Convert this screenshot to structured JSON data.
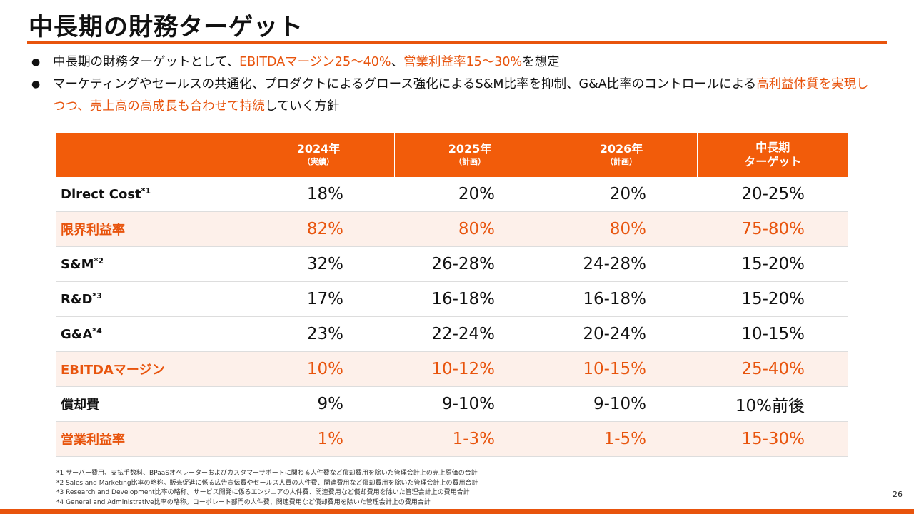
{
  "title": "中長期の財務ターゲット",
  "bullets": [
    {
      "parts": [
        {
          "text": "中長期の財務ターゲットとして、",
          "highlight": false
        },
        {
          "text": "EBITDAマージン25〜40%",
          "highlight": true
        },
        {
          "text": "、",
          "highlight": false
        },
        {
          "text": "営業利益率15〜30%",
          "highlight": true
        },
        {
          "text": "を想定",
          "highlight": false
        }
      ]
    },
    {
      "parts": [
        {
          "text": "マーケティングやセールスの共通化、プロダクトによるグロース強化によるS&M比率を抑制、G&A比率のコントロールによる",
          "highlight": false
        },
        {
          "text": "高利益体質を実現しつつ、売上高の高成長も合わせて持続",
          "highlight": true
        },
        {
          "text": "していく方針",
          "highlight": false
        }
      ]
    }
  ],
  "table": {
    "headers": [
      {
        "year": "",
        "sub": ""
      },
      {
        "year": "2024年",
        "sub": "（実績）"
      },
      {
        "year": "2025年",
        "sub": "（計画）"
      },
      {
        "year": "2026年",
        "sub": "（計画）"
      },
      {
        "year": "中長期",
        "sub": "ターゲット"
      }
    ],
    "rows": [
      {
        "label": "Direct Cost",
        "note": "*1",
        "values": [
          "18%",
          "20%",
          "20%",
          "20-25%"
        ]
      },
      {
        "label": "限界利益率",
        "note": "",
        "values": [
          "82%",
          "80%",
          "80%",
          "75-80%"
        ]
      },
      {
        "label": "S&M",
        "note": "*2",
        "values": [
          "32%",
          "26-28%",
          "24-28%",
          "15-20%"
        ]
      },
      {
        "label": "R&D",
        "note": "*3",
        "values": [
          "17%",
          "16-18%",
          "16-18%",
          "15-20%"
        ]
      },
      {
        "label": "G&A",
        "note": "*4",
        "values": [
          "23%",
          "22-24%",
          "20-24%",
          "10-15%"
        ]
      },
      {
        "label": "EBITDAマージン",
        "note": "",
        "values": [
          "10%",
          "10-12%",
          "10-15%",
          "25-40%"
        ]
      },
      {
        "label": "償却費",
        "note": "",
        "values": [
          "9%",
          "9-10%",
          "9-10%",
          "10%前後"
        ]
      },
      {
        "label": "営業利益率",
        "note": "",
        "values": [
          "1%",
          "1-3%",
          "1-5%",
          "15-30%"
        ]
      }
    ]
  },
  "footnotes": [
    "*1 サーバー費用、支払手数料、BPaaSオペレーターおよびカスタマーサポートに関わる人件費など償却費用を除いた管理会計上の売上原価の合計",
    "*2 Sales and Marketing比率の略称。販売促進に係る広告宣伝費やセールス人員の人件費、関連費用など償却費用を除いた管理会計上の費用合計",
    "*3 Research and Development比率の略称。サービス開発に係るエンジニアの人件費、関連費用など償却費用を除いた管理会計上の費用合計",
    "*4 General and Administrative比率の略称。コーポレート部門の人件費、関連費用など償却費用を除いた管理会計上の費用合計"
  ],
  "page_number": "26",
  "colors": {
    "accent": "#e8540d",
    "header_bg": "#f25c0a",
    "highlight_row_bg": "#fdf0ea"
  }
}
